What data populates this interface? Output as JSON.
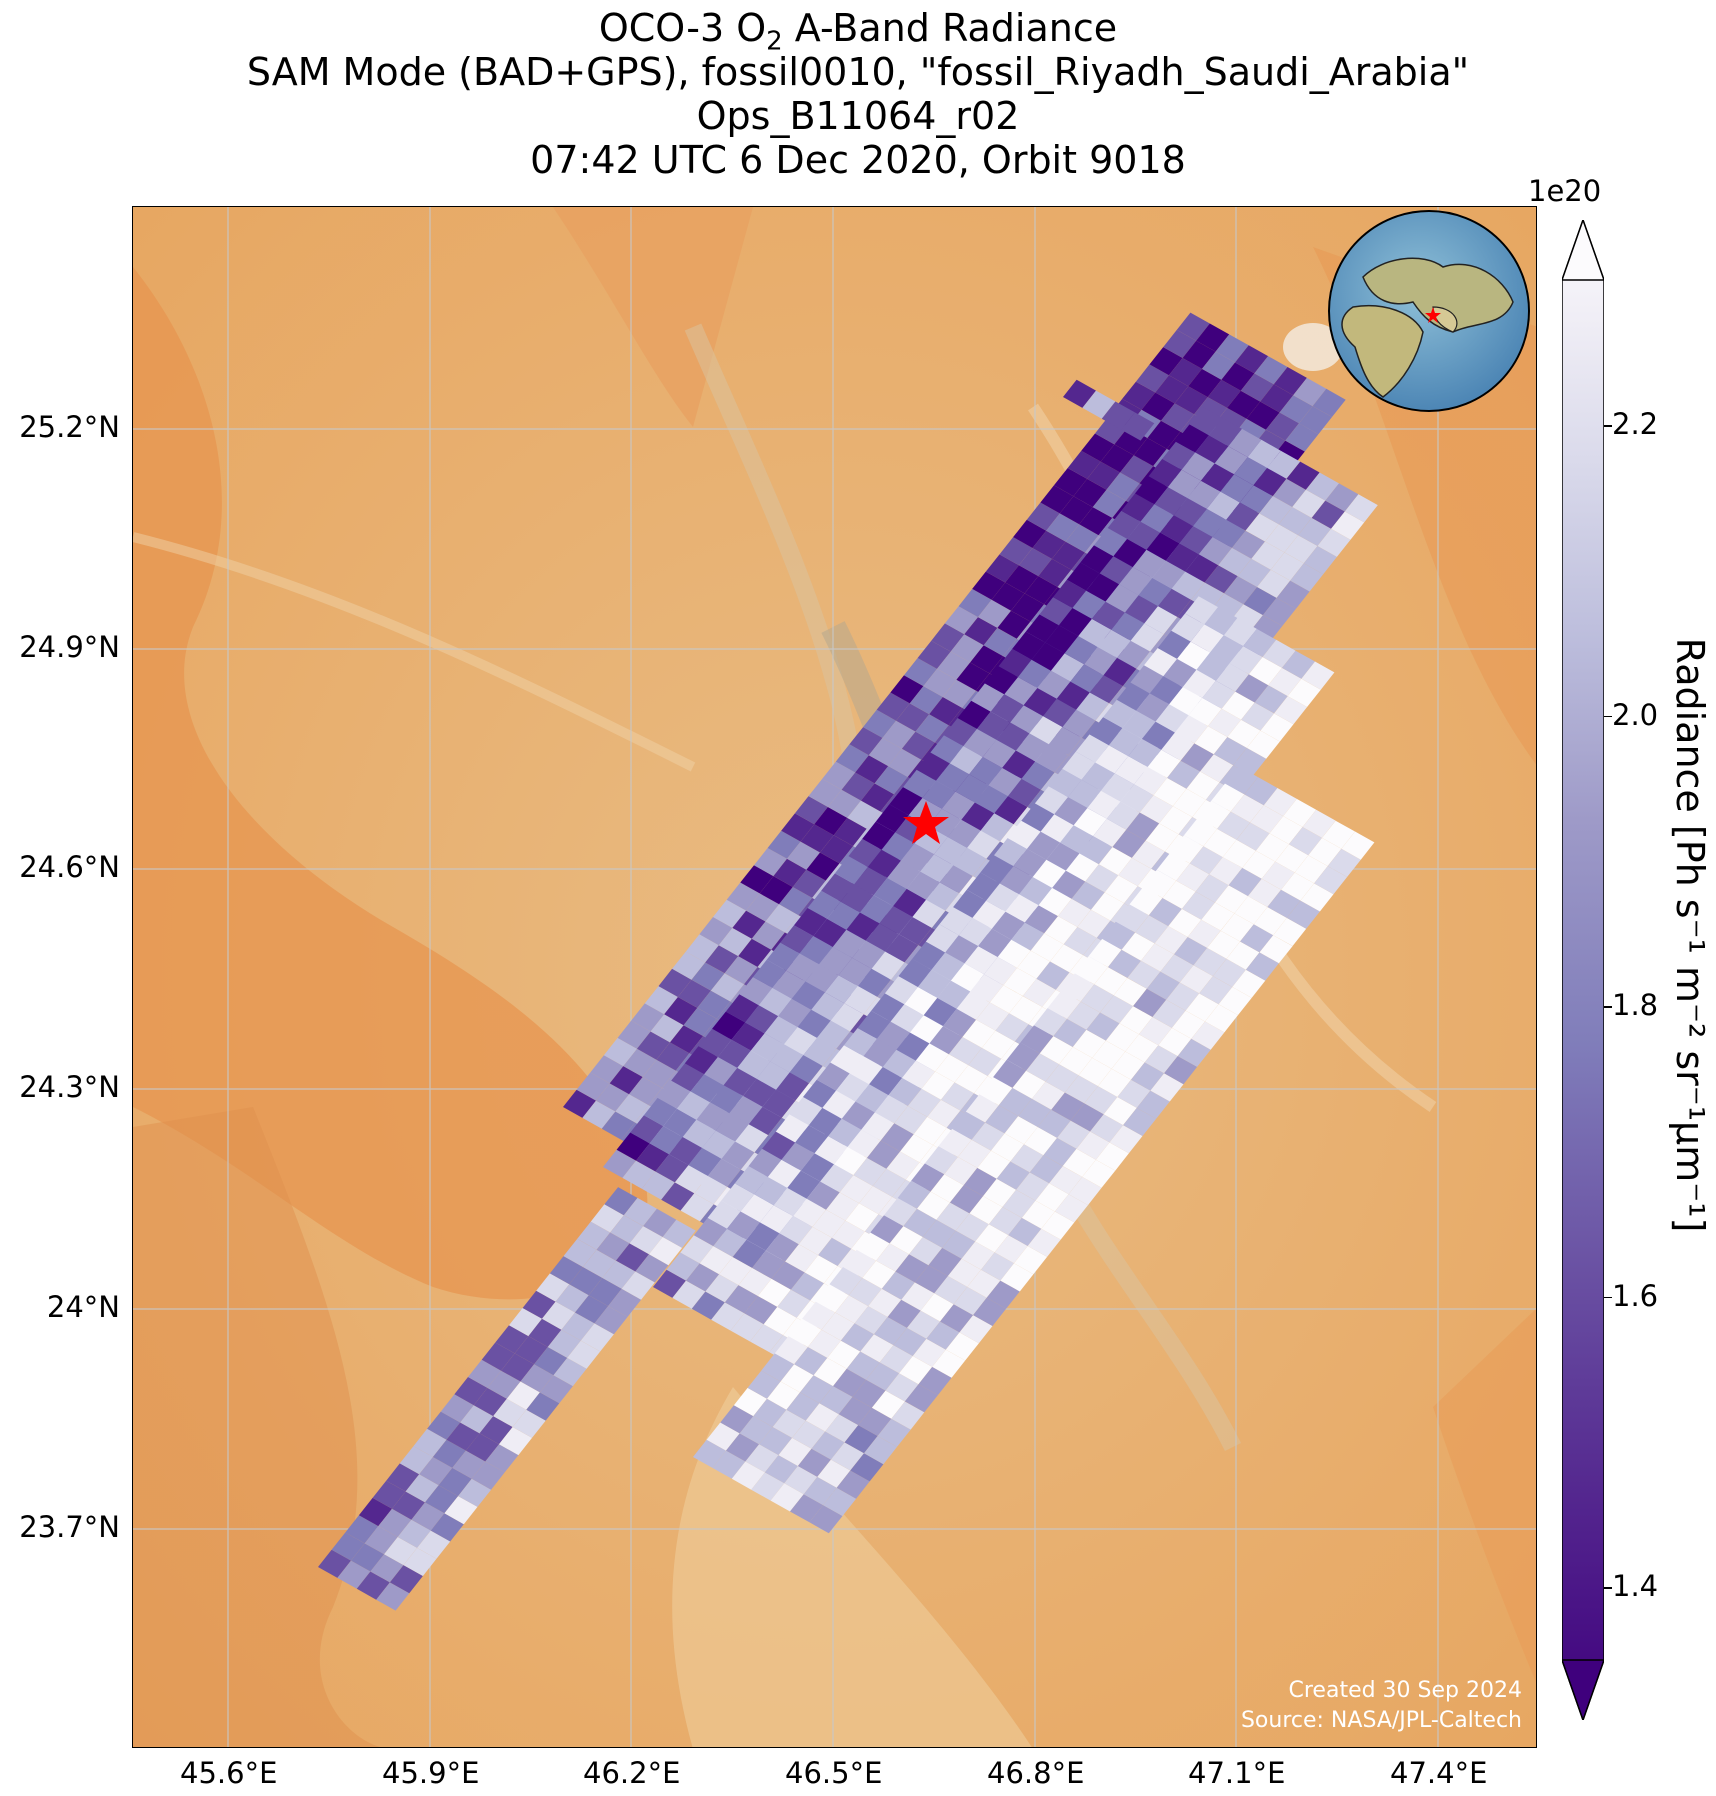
{
  "title": {
    "line1_prefix": "OCO-3 O",
    "line1_sub": "2",
    "line1_suffix": " A-Band Radiance",
    "line2": "SAM Mode (BAD+GPS), fossil0010, \"fossil_Riyadh_Saudi_Arabia\"",
    "line3": "Ops_B11064_r02",
    "line4": "07:42 UTC 6 Dec 2020, Orbit 9018"
  },
  "axes": {
    "lon_ticks": [
      "45.6°E",
      "45.9°E",
      "46.2°E",
      "46.5°E",
      "46.8°E",
      "47.1°E",
      "47.4°E"
    ],
    "lat_ticks": [
      "25.2°N",
      "24.9°N",
      "24.6°N",
      "24.3°N",
      "24°N",
      "23.7°N"
    ]
  },
  "colorbar": {
    "exponent": "1e20",
    "ticks": [
      "1.4",
      "1.6",
      "1.8",
      "2.0",
      "2.2"
    ],
    "tick_values": [
      1.4,
      1.6,
      1.8,
      2.0,
      2.2
    ],
    "range": [
      1.35,
      2.3
    ],
    "extend": "both",
    "colormap": "Purples",
    "label": "Radiance [Ph s⁻¹ m⁻² sr⁻¹μm⁻¹]"
  },
  "target_marker": {
    "icon": "red-star",
    "color": "#ff0000",
    "lon": 46.68,
    "lat": 24.68
  },
  "inset_globe": {
    "icon": "globe-icon",
    "marker": "red-star"
  },
  "credits": {
    "created": "Created 30 Sep 2024",
    "source": "Source: NASA/JPL-Caltech"
  },
  "colors": {
    "desert": "#e8b070",
    "dune": "#e79a55",
    "dark_purple": "#3f007d",
    "light_purple": "#fcfbfd"
  }
}
